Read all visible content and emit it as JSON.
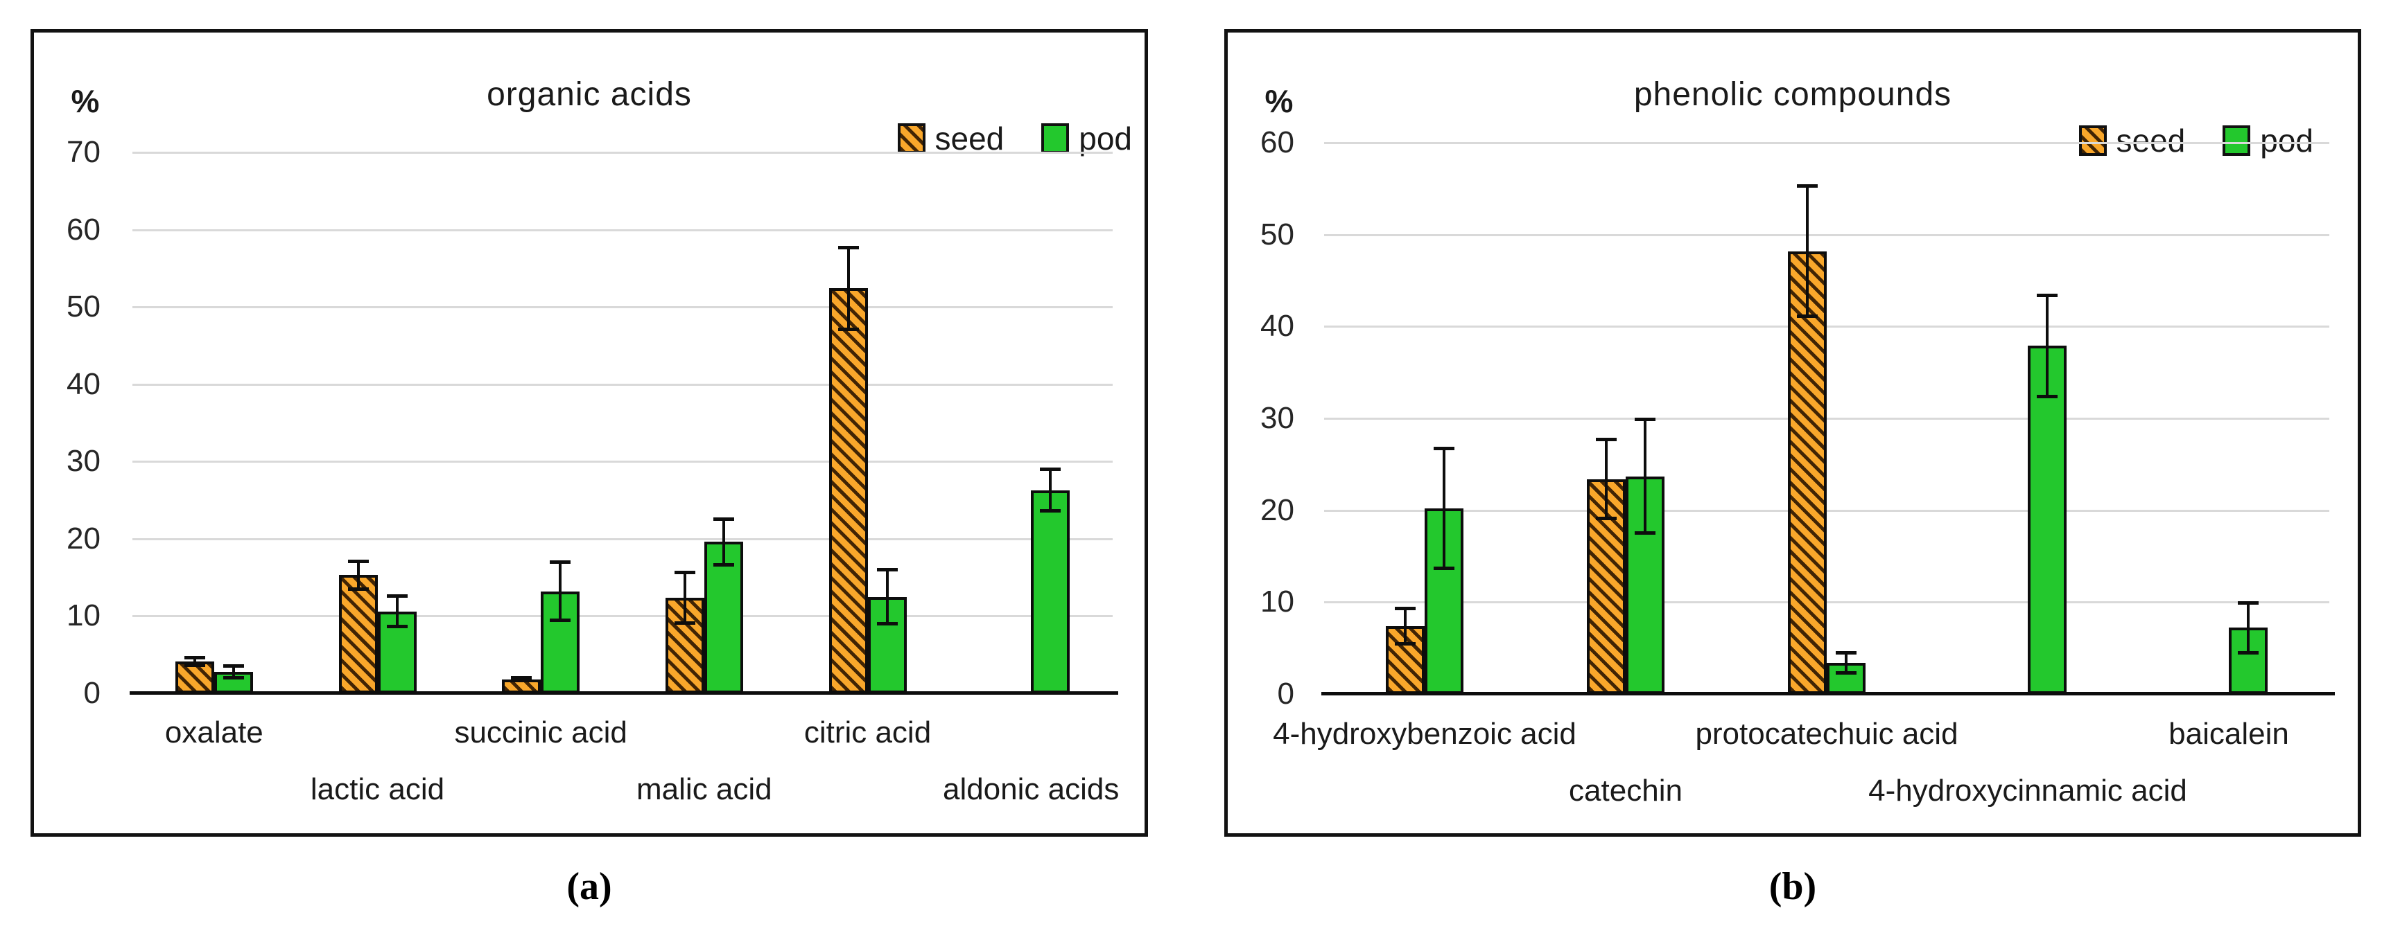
{
  "captions": {
    "a": "(a)",
    "b": "(b)"
  },
  "colors": {
    "seed_fill": "#F9A72B",
    "seed_hatch": "#2D1600",
    "pod_fill": "#23C82D",
    "bar_outline": "#0D0D0D",
    "gridline": "#D9D9D9",
    "axis_line": "#0D0D0D"
  },
  "chart_data": [
    {
      "id": "chart-a",
      "type": "bar",
      "title": "organic acids",
      "ylabel": "%",
      "ylim": [
        0,
        70
      ],
      "yticks": [
        0,
        10,
        20,
        30,
        40,
        50,
        60,
        70
      ],
      "grid": true,
      "legend_position": "top-right",
      "error_bars": true,
      "categories": [
        "oxalate",
        "lactic acid",
        "succinic acid",
        "malic acid",
        "citric acid",
        "aldonic acids"
      ],
      "series": [
        {
          "name": "seed",
          "color": "#F9A72B",
          "pattern": "diagonal-hatch",
          "values": [
            4.1,
            15.3,
            1.8,
            12.4,
            52.4,
            null
          ],
          "errors": [
            0.7,
            2.0,
            0.4,
            3.5,
            5.5,
            null
          ]
        },
        {
          "name": "pod",
          "color": "#23C82D",
          "pattern": "solid",
          "values": [
            2.8,
            10.6,
            13.2,
            19.6,
            12.5,
            26.3
          ],
          "errors": [
            1.0,
            2.2,
            4.0,
            3.2,
            3.7,
            2.9
          ]
        }
      ]
    },
    {
      "id": "chart-b",
      "type": "bar",
      "title": "phenolic compounds",
      "ylabel": "%",
      "ylim": [
        0,
        60
      ],
      "yticks": [
        0,
        10,
        20,
        30,
        40,
        50,
        60
      ],
      "grid": true,
      "legend_position": "top-right",
      "error_bars": true,
      "categories": [
        "4-hydroxybenzoic acid",
        "catechin",
        "protocatechuic acid",
        "4-hydroxycinnamic acid",
        "baicalein"
      ],
      "series": [
        {
          "name": "seed",
          "color": "#F9A72B",
          "pattern": "diagonal-hatch",
          "values": [
            7.4,
            23.4,
            48.2,
            null,
            null
          ],
          "errors": [
            2.1,
            4.5,
            7.3,
            null,
            null
          ]
        },
        {
          "name": "pod",
          "color": "#23C82D",
          "pattern": "solid",
          "values": [
            20.2,
            23.7,
            3.4,
            37.9,
            7.2
          ],
          "errors": [
            6.7,
            6.4,
            1.3,
            5.7,
            2.9
          ]
        }
      ]
    }
  ]
}
